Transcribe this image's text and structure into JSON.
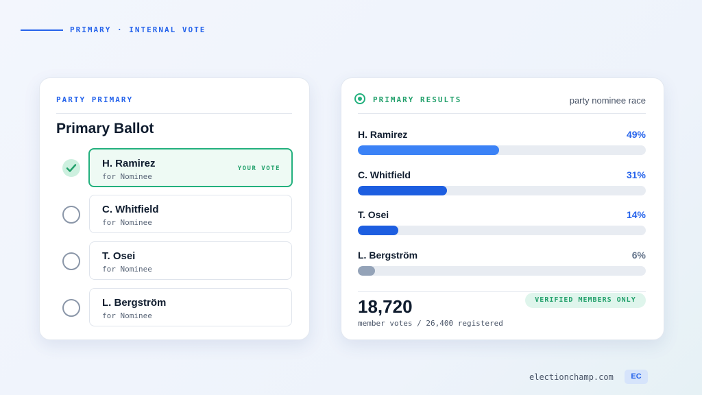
{
  "header": {
    "eyebrow": "PRIMARY · INTERNAL VOTE"
  },
  "ballot": {
    "eyebrow": "PARTY PRIMARY",
    "title": "Primary Ballot",
    "your_vote": "YOUR VOTE",
    "selected": 0,
    "candidates": [
      {
        "name": "H. Ramirez",
        "role": "for Nominee"
      },
      {
        "name": "C. Whitfield",
        "role": "for Nominee"
      },
      {
        "name": "T. Osei",
        "role": "for Nominee"
      },
      {
        "name": "L. Bergström",
        "role": "for Nominee"
      }
    ]
  },
  "results": {
    "eyebrow": "PRIMARY RESULTS",
    "context": "party nominee race",
    "rows": [
      {
        "name": "H. Ramirez",
        "value": 49,
        "label": "49%",
        "color": "#3b82f6",
        "label_color": "#2563eb"
      },
      {
        "name": "C. Whitfield",
        "value": 31,
        "label": "31%",
        "color": "#1d5ee0",
        "label_color": "#2563eb"
      },
      {
        "name": "T. Osei",
        "value": 14,
        "label": "14%",
        "color": "#1d5ee0",
        "label_color": "#2563eb"
      },
      {
        "name": "L. Bergström",
        "value": 6,
        "label": "6%",
        "color": "#94a3b8",
        "label_color": "#64748b"
      }
    ],
    "scale_max": 100,
    "total": "18,720",
    "total_caption": "member votes / 26,400 registered",
    "badge": "VERIFIED MEMBERS ONLY"
  },
  "footer": {
    "domain": "electionchamp.com",
    "logo": "EC"
  }
}
